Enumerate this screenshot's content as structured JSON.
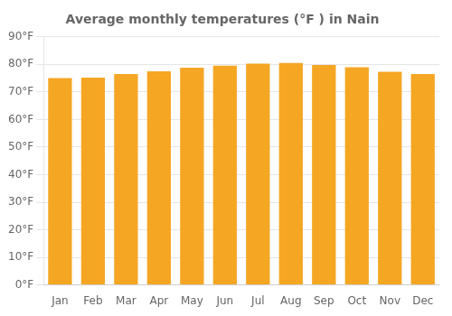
{
  "chart_data": {
    "type": "bar",
    "title": "Average monthly temperatures (°F ) in Nain",
    "categories": [
      "Jan",
      "Feb",
      "Mar",
      "Apr",
      "May",
      "Jun",
      "Jul",
      "Aug",
      "Sep",
      "Oct",
      "Nov",
      "Dec"
    ],
    "values": [
      75.0,
      75.2,
      76.5,
      77.5,
      78.8,
      79.5,
      80.3,
      80.5,
      79.8,
      79.0,
      77.3,
      76.5
    ],
    "color": "#F5A623",
    "ylim": [
      0,
      90
    ],
    "yticks": [
      {
        "value": 0,
        "label": "0°F"
      },
      {
        "value": 10,
        "label": "10°F"
      },
      {
        "value": 20,
        "label": "20°F"
      },
      {
        "value": 30,
        "label": "30°F"
      },
      {
        "value": 40,
        "label": "40°F"
      },
      {
        "value": 50,
        "label": "50°F"
      },
      {
        "value": 60,
        "label": "60°F"
      },
      {
        "value": 70,
        "label": "70°F"
      },
      {
        "value": 80,
        "label": "80°F"
      },
      {
        "value": 90,
        "label": "90°F"
      }
    ],
    "grid": true
  }
}
